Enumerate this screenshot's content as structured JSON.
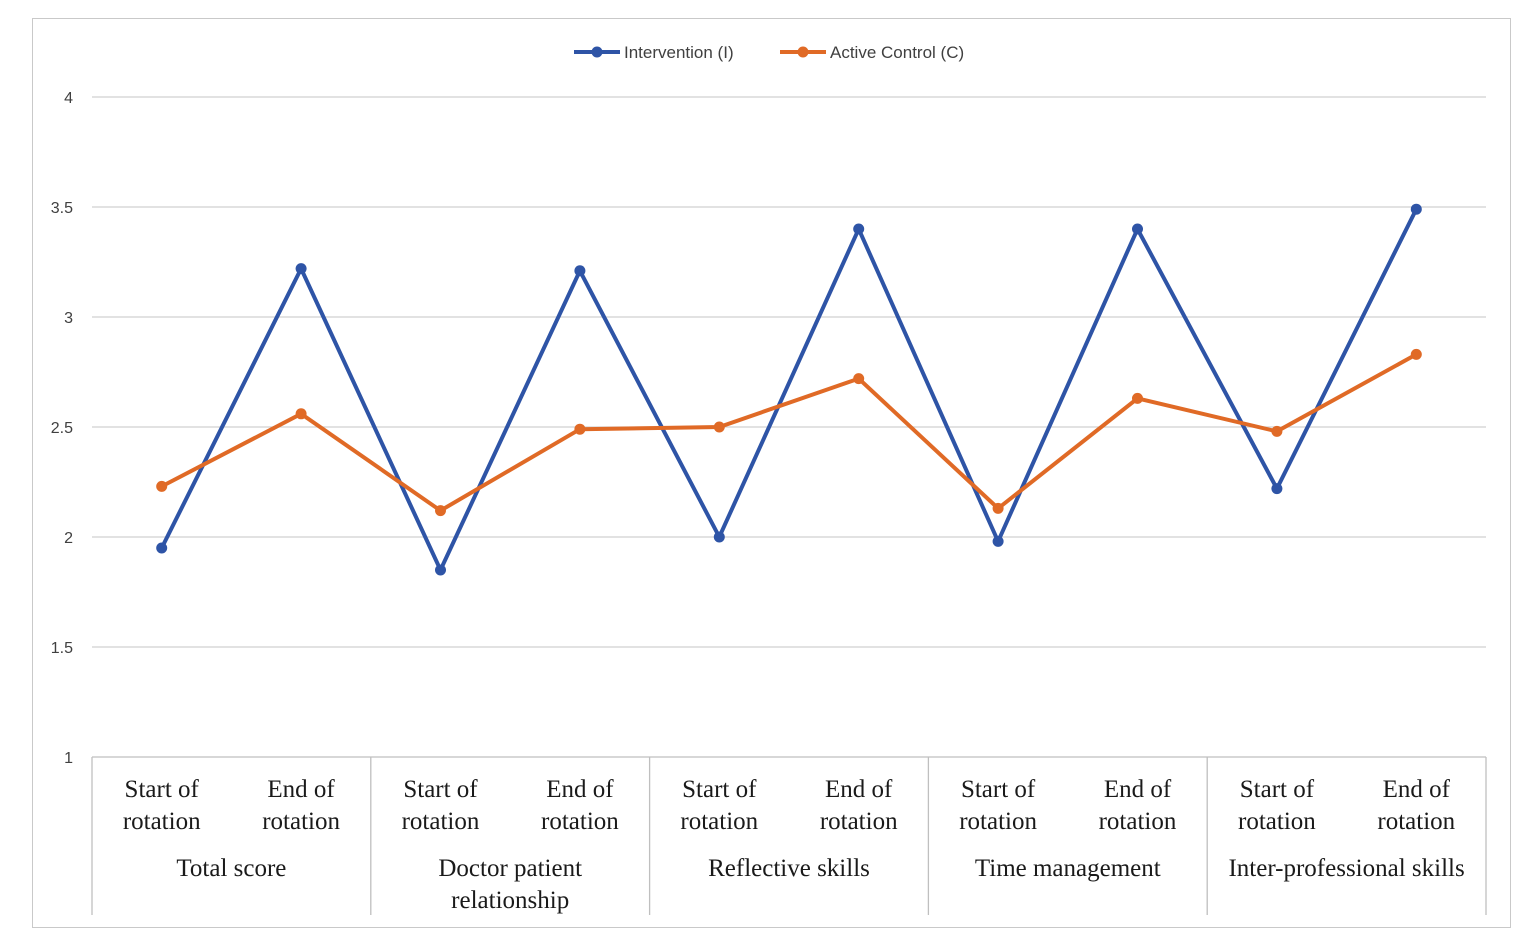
{
  "chart_data": {
    "type": "line",
    "categories": [
      {
        "sub": [
          "Start of",
          "rotation"
        ],
        "group": "Total score"
      },
      {
        "sub": [
          "End of",
          "rotation"
        ],
        "group": "Total score"
      },
      {
        "sub": [
          "Start of",
          "rotation"
        ],
        "group": "Doctor patient relationship"
      },
      {
        "sub": [
          "End of",
          "rotation"
        ],
        "group": "Doctor patient relationship"
      },
      {
        "sub": [
          "Start of",
          "rotation"
        ],
        "group": "Reflective skills"
      },
      {
        "sub": [
          "End of",
          "rotation"
        ],
        "group": "Reflective skills"
      },
      {
        "sub": [
          "Start of",
          "rotation"
        ],
        "group": "Time management"
      },
      {
        "sub": [
          "End of",
          "rotation"
        ],
        "group": "Time management"
      },
      {
        "sub": [
          "Start of",
          "rotation"
        ],
        "group": "Inter-professional skills"
      },
      {
        "sub": [
          "End of",
          "rotation"
        ],
        "group": "Inter-professional skills"
      }
    ],
    "groups": [
      {
        "lines": [
          "Total score"
        ]
      },
      {
        "lines": [
          "Doctor patient",
          "relationship"
        ]
      },
      {
        "lines": [
          "Reflective skills"
        ]
      },
      {
        "lines": [
          "Time management"
        ]
      },
      {
        "lines": [
          "Inter-professional skills"
        ]
      }
    ],
    "series": [
      {
        "name": "Intervention (I)",
        "color": "#2e54a6",
        "values": [
          1.95,
          3.22,
          1.85,
          3.21,
          2.0,
          3.4,
          1.98,
          3.4,
          2.22,
          3.49
        ]
      },
      {
        "name": "Active Control (C)",
        "color": "#e06a26",
        "values": [
          2.23,
          2.56,
          2.12,
          2.49,
          2.5,
          2.72,
          2.13,
          2.63,
          2.48,
          2.83
        ]
      }
    ],
    "ylim": [
      1,
      4
    ],
    "yticks": [
      "1",
      "1.5",
      "2",
      "2.5",
      "3",
      "3.5",
      "4"
    ],
    "grid": true,
    "legend": "top-center"
  }
}
